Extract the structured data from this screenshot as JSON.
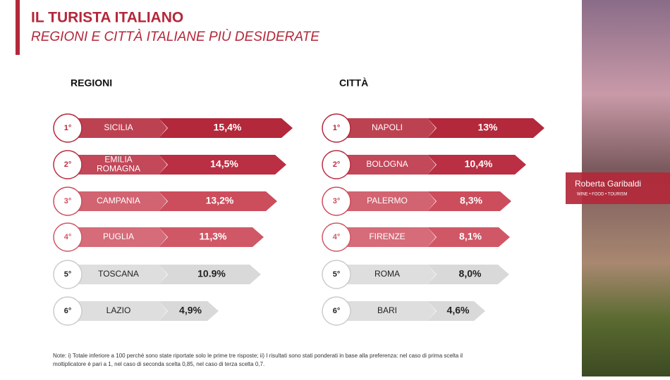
{
  "header": {
    "title": "IL TURISTA ITALIANO",
    "subtitle": "REGIONI E CITTÀ ITALIANE PIÙ DESIDERATE"
  },
  "chart_data": [
    {
      "type": "bar",
      "title": "REGIONI",
      "ranks": [
        "1°",
        "2°",
        "3°",
        "4°",
        "5°",
        "6°"
      ],
      "categories": [
        "SICILIA",
        "EMILIA ROMAGNA",
        "CAMPANIA",
        "PUGLIA",
        "TOSCANA",
        "LAZIO"
      ],
      "values": [
        15.4,
        14.5,
        13.2,
        11.3,
        10.9,
        4.9
      ],
      "value_labels": [
        "15,4%",
        "14,5%",
        "13,2%",
        "11,3%",
        "10.9%",
        "4,9%"
      ],
      "colors": [
        "#b3283a",
        "#ba2f43",
        "#cc4d5c",
        "#d05866",
        "#d9d9d9",
        "#d9d9d9"
      ],
      "text_colors": [
        "#ffffff",
        "#ffffff",
        "#ffffff",
        "#ffffff",
        "#222222",
        "#222222"
      ]
    },
    {
      "type": "bar",
      "title": "CITTÀ",
      "ranks": [
        "1°",
        "2°",
        "3°",
        "4°",
        "5°",
        "6°"
      ],
      "categories": [
        "NAPOLI",
        "BOLOGNA",
        "PALERMO",
        "FIRENZE",
        "ROMA",
        "BARI"
      ],
      "values": [
        13,
        10.4,
        8.3,
        8.1,
        8.0,
        4.6
      ],
      "value_labels": [
        "13%",
        "10,4%",
        "8,3%",
        "8,1%",
        "8,0%",
        "4,6%"
      ],
      "colors": [
        "#b3283a",
        "#ba2f43",
        "#cc4d5c",
        "#d05866",
        "#d9d9d9",
        "#d9d9d9"
      ],
      "text_colors": [
        "#ffffff",
        "#ffffff",
        "#ffffff",
        "#ffffff",
        "#222222",
        "#222222"
      ]
    }
  ],
  "note": [
    "Note: i) Totale inferiore a 100 perché sono state riportate solo le prime tre risposte; ii)  I risultati sono stati ponderati in base alla preferenza: nel caso di prima scelta il",
    "moltiplicatore è pari a 1, nel caso di seconda scelta 0,85, nel caso di terza scelta 0,7."
  ],
  "brand": {
    "name": "Roberta Garibaldi",
    "tagline": "WINE • FOOD • TOURISM"
  }
}
